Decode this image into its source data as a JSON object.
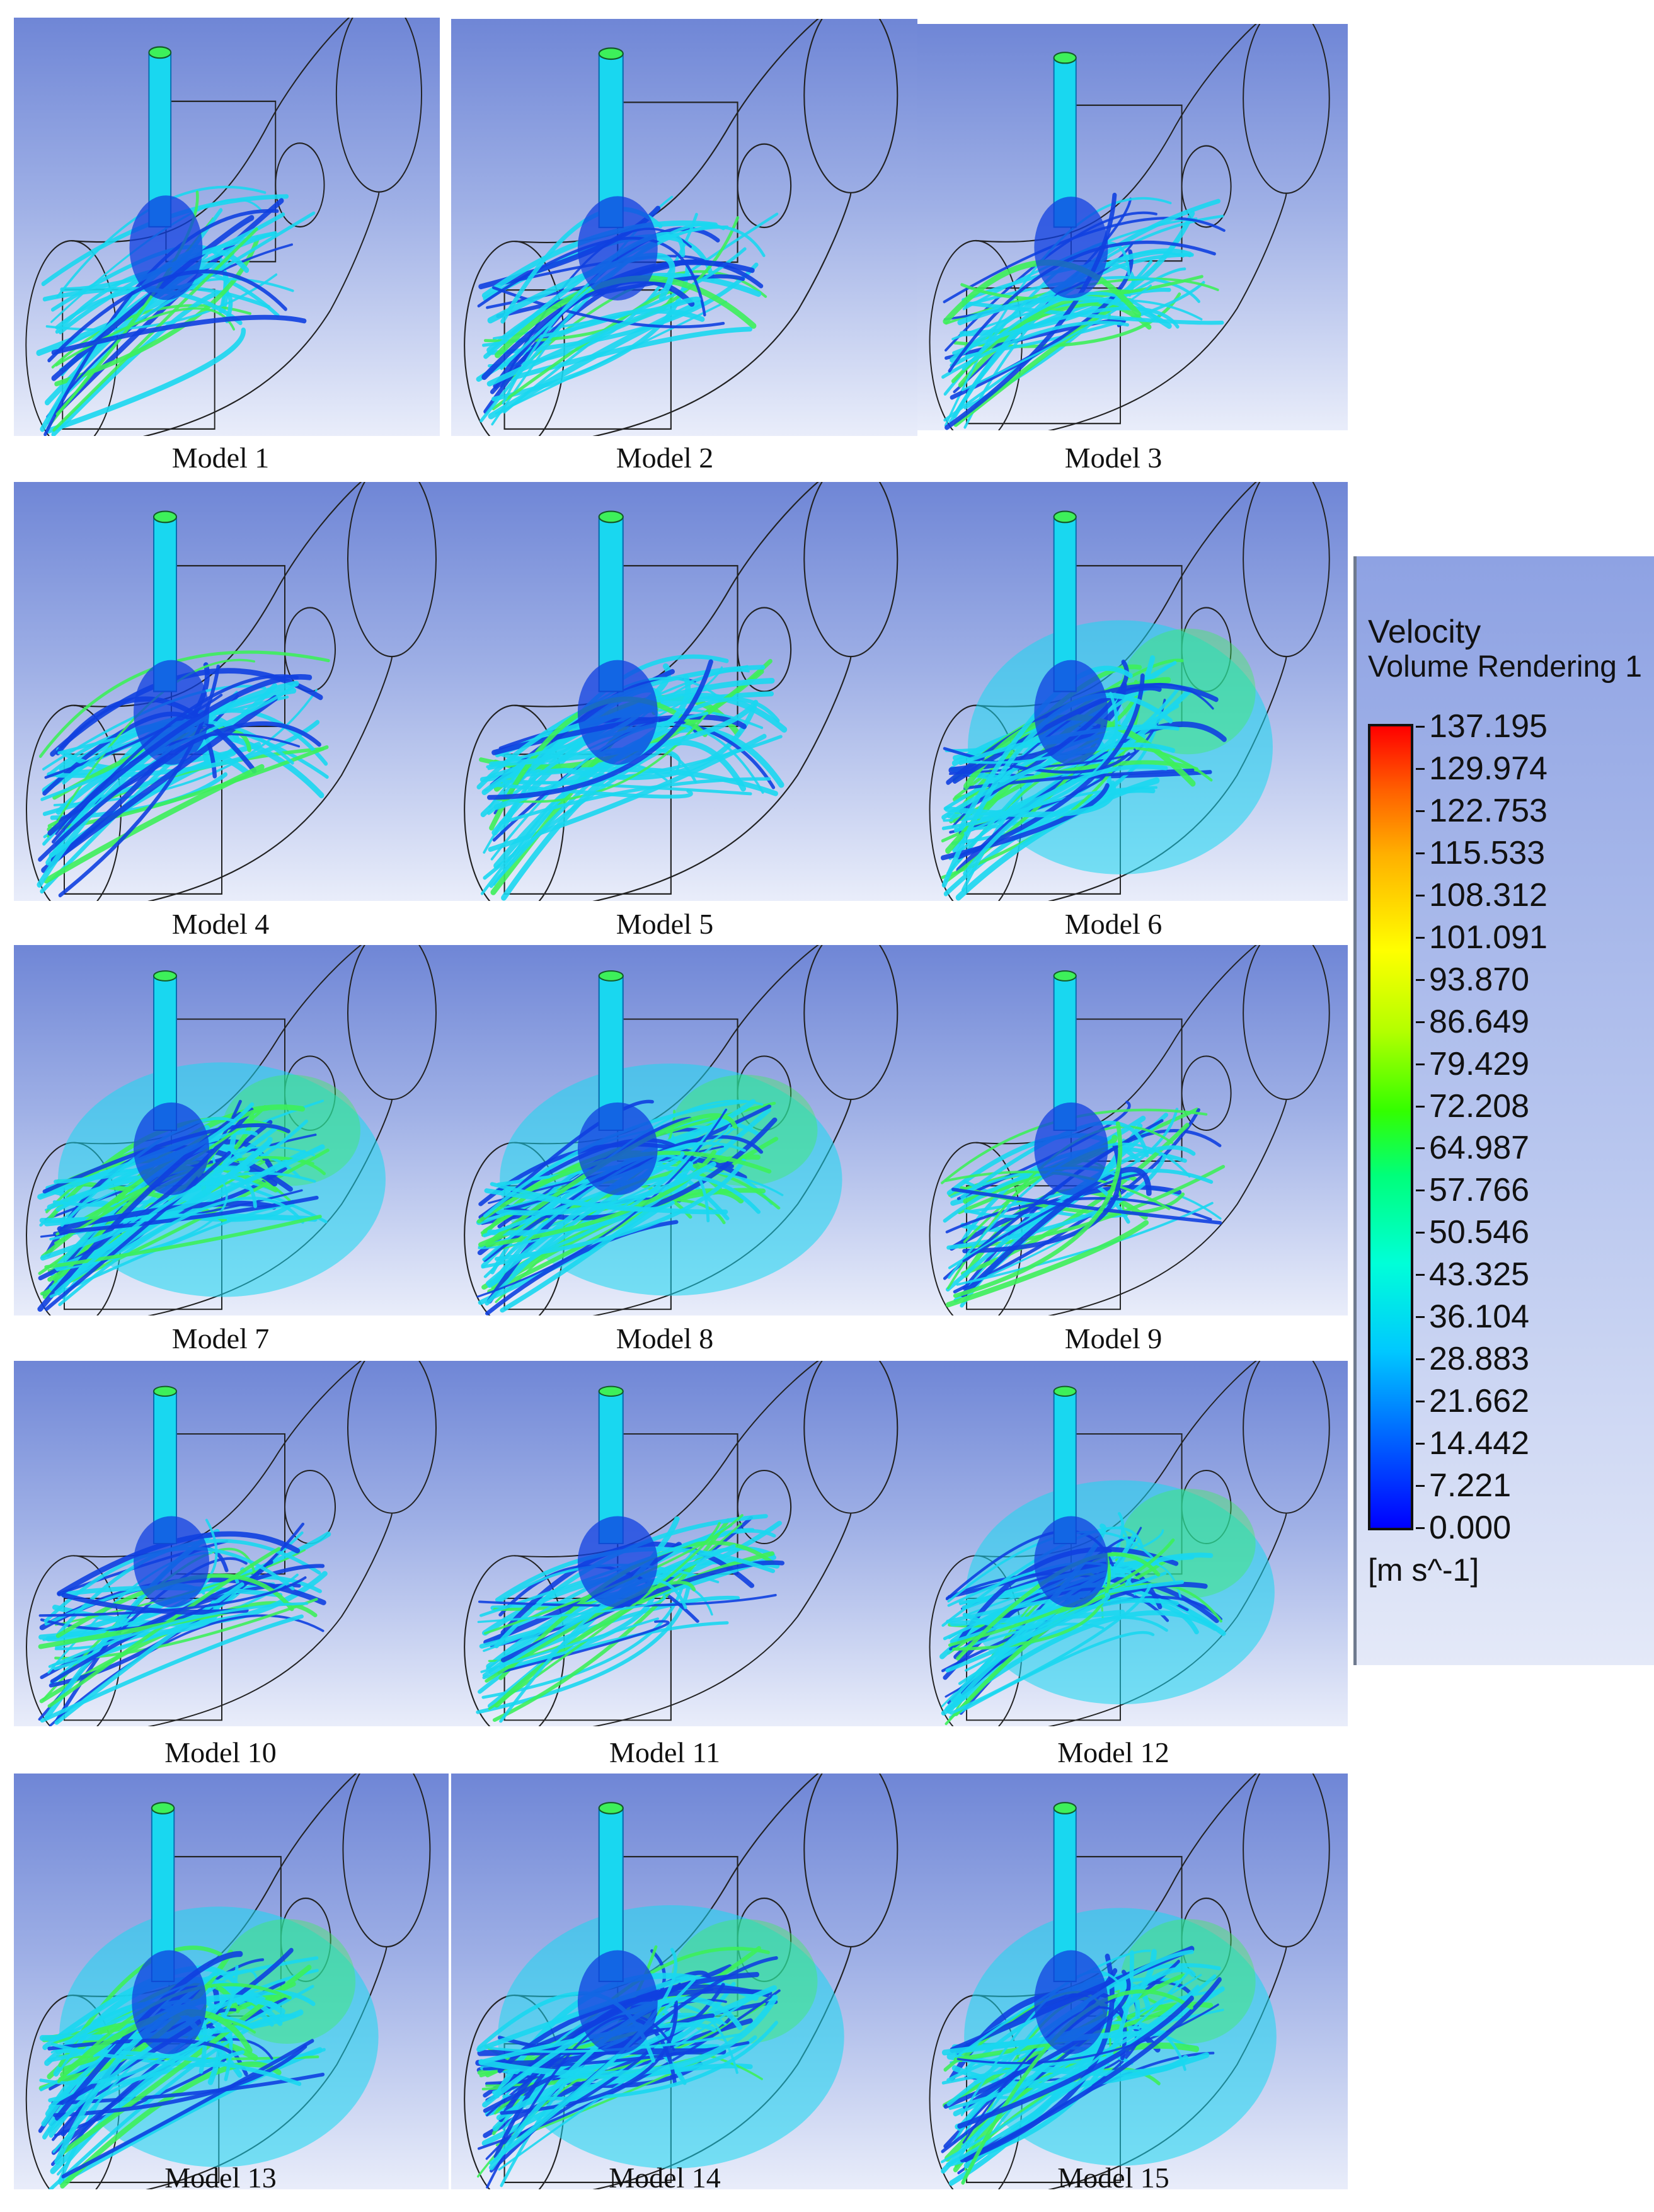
{
  "models": [
    {
      "caption": "Model 1"
    },
    {
      "caption": "Model 2"
    },
    {
      "caption": "Model 3"
    },
    {
      "caption": "Model 4"
    },
    {
      "caption": "Model 5"
    },
    {
      "caption": "Model 6"
    },
    {
      "caption": "Model 7"
    },
    {
      "caption": "Model 8"
    },
    {
      "caption": "Model 9"
    },
    {
      "caption": "Model 10"
    },
    {
      "caption": "Model 11"
    },
    {
      "caption": "Model 12"
    },
    {
      "caption": "Model 13"
    },
    {
      "caption": "Model 14"
    },
    {
      "caption": "Model 15"
    }
  ],
  "legend": {
    "title": "Velocity",
    "subtitle": "Volume Rendering 1",
    "ticks": [
      "137.195",
      "129.974",
      "122.753",
      "115.533",
      "108.312",
      "101.091",
      "93.870",
      "86.649",
      "79.429",
      "72.208",
      "64.987",
      "57.766",
      "50.546",
      "43.325",
      "36.104",
      "28.883",
      "21.662",
      "14.442",
      "7.221",
      "0.000"
    ],
    "unit": "[m s^-1]"
  },
  "colors": {
    "background_top": "#6f86d6",
    "background_bottom": "#e9edfa",
    "streamline_low": "#1040e0",
    "streamline_mid": "#19d7f0",
    "streamline_high": "#3df05a"
  }
}
